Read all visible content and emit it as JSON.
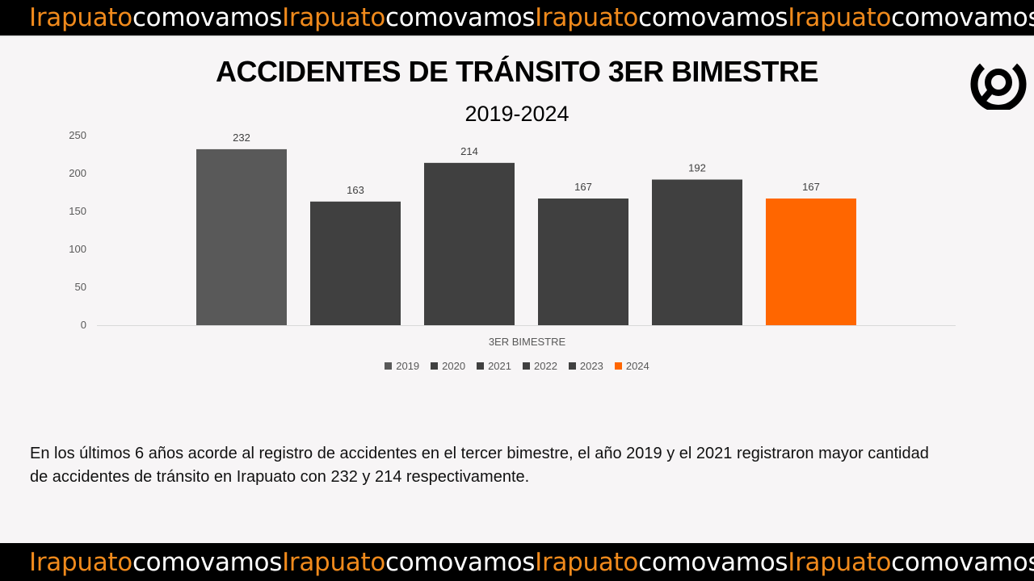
{
  "banner": {
    "segments": [
      {
        "text": "Irapuato",
        "color": "orange"
      },
      {
        "text": "comovamos",
        "color": "white"
      },
      {
        "text": "Irapuato",
        "color": "orange"
      },
      {
        "text": "comovamos",
        "color": "white"
      },
      {
        "text": "Irapuato",
        "color": "orange"
      },
      {
        "text": "comovamos",
        "color": "white"
      },
      {
        "text": "Irapuato",
        "color": "orange"
      },
      {
        "text": "comovamos",
        "color": "white"
      }
    ]
  },
  "logo": {
    "icon": "magnifier-circle-logo-icon"
  },
  "colors": {
    "brand_orange": "#f08a1c",
    "bar_2019": "#595959",
    "bar_dark": "#404040",
    "bar_2024": "#FF6600"
  },
  "chart_data": {
    "type": "bar",
    "title": "ACCIDENTES DE TRÁNSITO 3ER BIMESTRE",
    "subtitle": "2019-2024",
    "categories": [
      "3ER BIMESTRE"
    ],
    "xlabel": "3ER BIMESTRE",
    "ylabel": "",
    "ylim": [
      0,
      250
    ],
    "yticks": [
      0,
      50,
      100,
      150,
      200,
      250
    ],
    "grid": false,
    "legend_position": "bottom",
    "series": [
      {
        "name": "2019",
        "values": [
          232
        ],
        "color": "#595959"
      },
      {
        "name": "2020",
        "values": [
          163
        ],
        "color": "#404040"
      },
      {
        "name": "2021",
        "values": [
          214
        ],
        "color": "#404040"
      },
      {
        "name": "2022",
        "values": [
          167
        ],
        "color": "#404040"
      },
      {
        "name": "2023",
        "values": [
          192
        ],
        "color": "#404040"
      },
      {
        "name": "2024",
        "values": [
          167
        ],
        "color": "#FF6600"
      }
    ]
  },
  "paragraph": {
    "text": "En los últimos 6 años acorde al registro de accidentes en el tercer bimestre, el año 2019  y el 2021 registraron mayor cantidad de accidentes de tránsito en Irapuato con 232 y 214 respectivamente."
  }
}
